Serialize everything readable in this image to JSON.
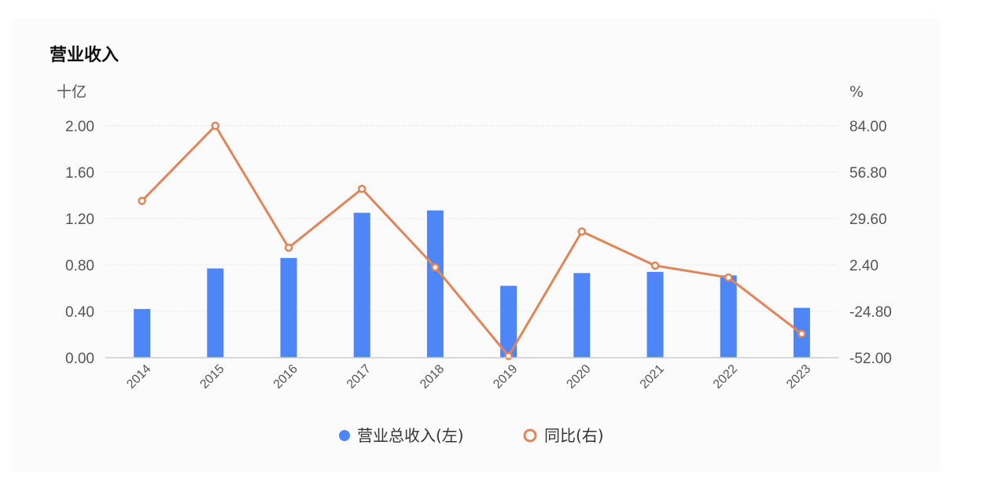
{
  "chart_data": {
    "type": "bar",
    "title": "营业收入",
    "categories": [
      "2014",
      "2015",
      "2016",
      "2017",
      "2018",
      "2019",
      "2020",
      "2021",
      "2022",
      "2023"
    ],
    "series": [
      {
        "name": "营业总收入(左)",
        "type": "bar",
        "axis": "left",
        "color": "#4f86f7",
        "values": [
          0.42,
          0.77,
          0.86,
          1.25,
          1.27,
          0.62,
          0.73,
          0.74,
          0.71,
          0.43
        ]
      },
      {
        "name": "同比(右)",
        "type": "line",
        "axis": "right",
        "color": "#e0855a",
        "values": [
          40.0,
          84.0,
          12.5,
          47.0,
          1.0,
          -51.0,
          22.0,
          2.0,
          -5.0,
          -38.0
        ]
      }
    ],
    "y_left": {
      "unit": "十亿",
      "ylim": [
        0,
        2.0
      ],
      "ticks": [
        "0.00",
        "0.40",
        "0.80",
        "1.20",
        "1.60",
        "2.00"
      ]
    },
    "y_right": {
      "unit": "%",
      "ylim": [
        -52.0,
        84.0
      ],
      "ticks": [
        "-52.00",
        "-24.80",
        "2.40",
        "29.60",
        "56.80",
        "84.00"
      ]
    },
    "grid": true,
    "legend_position": "bottom-center"
  }
}
